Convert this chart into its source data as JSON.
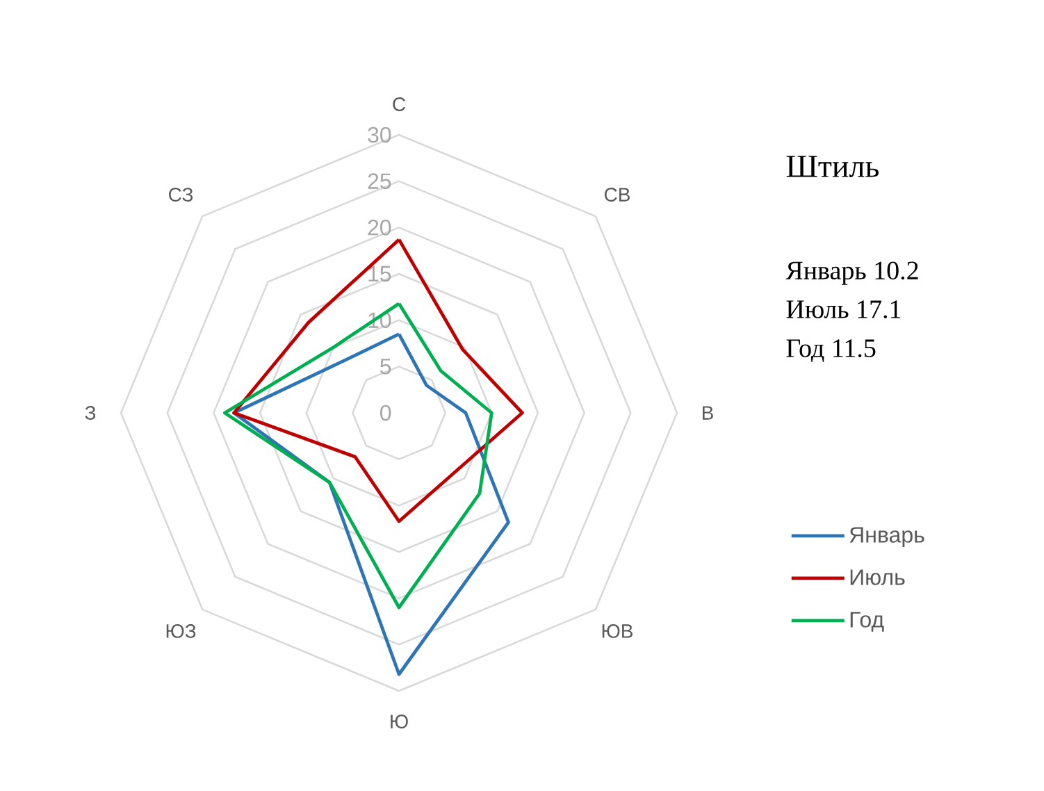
{
  "chart_data": {
    "type": "radar",
    "categories": [
      "С",
      "СВ",
      "В",
      "ЮВ",
      "Ю",
      "ЮЗ",
      "З",
      "СЗ"
    ],
    "series": [
      {
        "name": "Январь",
        "color": "#2e75b6",
        "values": [
          8.5,
          4.2,
          7.2,
          16.7,
          28.2,
          10.6,
          17.8,
          8.1
        ]
      },
      {
        "name": "Июль",
        "color": "#c00000",
        "values": [
          18.7,
          9.7,
          13.3,
          8.8,
          11.7,
          6.7,
          17.8,
          13.8
        ]
      },
      {
        "name": "Год",
        "color": "#00b050",
        "values": [
          11.8,
          6.4,
          10.0,
          12.3,
          21.0,
          10.6,
          18.8,
          10.0
        ]
      }
    ],
    "ylim": [
      0,
      30
    ],
    "yticks": [
      0,
      5,
      10,
      15,
      20,
      25,
      30
    ],
    "grid": true,
    "legend": "right",
    "annotations": [
      "Штиль",
      "Январь 10.2",
      "Июль 17.1",
      "Год 11.5"
    ]
  }
}
